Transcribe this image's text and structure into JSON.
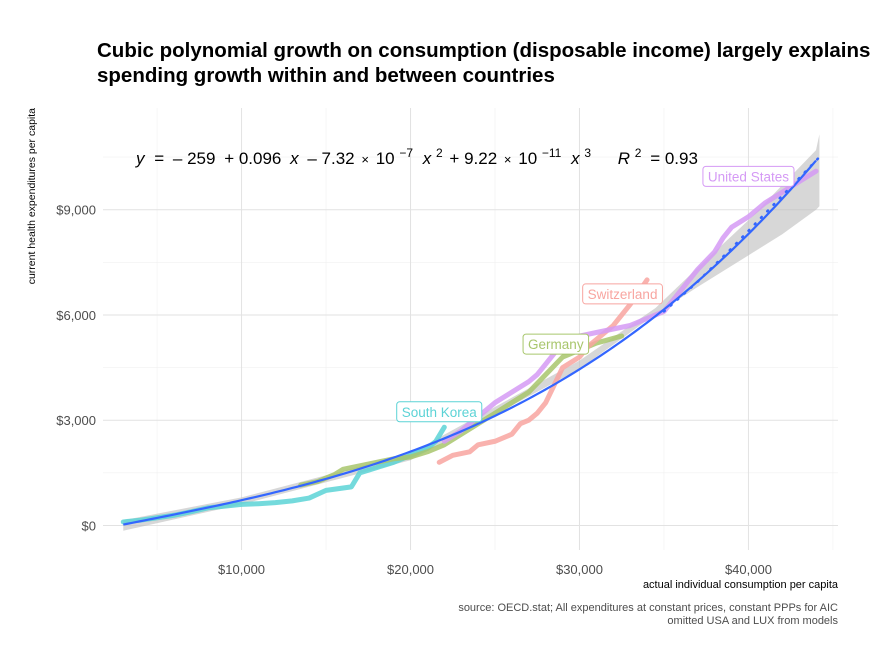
{
  "title": {
    "line1": "Cubic polynomial growth on consumption (disposable income) largely explains",
    "line2": "spending growth within and between countries"
  },
  "source": {
    "line1": "source: OECD.stat; All expenditures at constant prices, constant PPPs for AIC",
    "line2": "omitted USA and LUX from models"
  },
  "chart_data": {
    "type": "line",
    "xlabel": "actual individual consumption per capita",
    "ylabel": "current health expenditures per capita",
    "xlim": [
      1800,
      45300
    ],
    "ylim": [
      -700,
      11900
    ],
    "x_ticks": [
      10000,
      20000,
      30000,
      40000
    ],
    "x_tick_labels": [
      "$10,000",
      "$20,000",
      "$30,000",
      "$40,000"
    ],
    "y_ticks": [
      0,
      3000,
      6000,
      9000
    ],
    "y_tick_labels": [
      "$0",
      "$3,000",
      "$6,000",
      "$9,000"
    ],
    "equation": {
      "y": "y",
      "eq": "=",
      "c0": "– 259",
      "c1": "+ 0.096",
      "x": "x",
      "c2": "– 7.32",
      "times": "×",
      "ten": "10",
      "exp2": "−7",
      "p2": "2",
      "c3": "+ 9.22",
      "exp3": "−11",
      "p3": "3",
      "r": "R",
      "rp": "2",
      "rval": "= 0.93"
    },
    "fit": {
      "name": "cubic fit",
      "color": "#3366ff",
      "coefficients": [
        -259,
        0.096,
        -7.32e-07,
        9.22e-11
      ],
      "x_range": [
        3000,
        44000
      ]
    },
    "extrapolation": {
      "name": "US extrapolation",
      "x": [
        35000,
        37000,
        39000,
        41000,
        43000,
        44200
      ],
      "y": [
        6100,
        6950,
        7900,
        8900,
        9900,
        10500
      ]
    },
    "confidence_band": {
      "x": [
        3000,
        10000,
        20000,
        30000,
        34500,
        37000,
        40000,
        42000,
        44000,
        44200
      ],
      "lower": [
        -150,
        600,
        1860,
        4460,
        6020,
        6800,
        7700,
        8300,
        9000,
        9100
      ],
      "upper": [
        150,
        800,
        2060,
        4700,
        6200,
        7350,
        8700,
        9700,
        10700,
        11150
      ]
    },
    "series": [
      {
        "name": "South Korea",
        "color": "#5cd3d6",
        "x": [
          3000,
          4000,
          5000,
          6000,
          7000,
          8000,
          9000,
          10000,
          11000,
          12000,
          13000,
          14000,
          15000,
          16500,
          17000,
          18000,
          19000,
          20000,
          21000,
          21500,
          22000
        ],
        "y": [
          100,
          150,
          220,
          290,
          390,
          500,
          550,
          600,
          620,
          650,
          700,
          780,
          1000,
          1100,
          1500,
          1650,
          1800,
          2000,
          2200,
          2400,
          2800
        ]
      },
      {
        "name": "Germany",
        "color": "#a8c66c",
        "x": [
          13500,
          14500,
          15500,
          16000,
          17000,
          18000,
          19000,
          20000,
          21000,
          22000,
          23000,
          24000,
          25000,
          26000,
          27000,
          28000,
          29000,
          30000,
          31000,
          32500
        ],
        "y": [
          1150,
          1250,
          1450,
          1600,
          1700,
          1800,
          1900,
          1950,
          2100,
          2300,
          2600,
          2900,
          3200,
          3500,
          3800,
          4300,
          4800,
          5000,
          5200,
          5400
        ]
      },
      {
        "name": "Switzerland",
        "color": "#f8a5a0",
        "x": [
          21700,
          22500,
          23500,
          24000,
          25000,
          26000,
          26500,
          27000,
          27500,
          28000,
          28500,
          29000,
          30000,
          30500,
          31000,
          32000,
          33000,
          34000
        ],
        "y": [
          1800,
          2000,
          2100,
          2300,
          2400,
          2600,
          2900,
          3000,
          3200,
          3500,
          4000,
          4500,
          4800,
          5100,
          5300,
          5700,
          6300,
          7000
        ]
      },
      {
        "name": "United States",
        "color": "#d59af5",
        "x": [
          22000,
          23000,
          24000,
          25000,
          26000,
          27000,
          27500,
          28000,
          28500,
          29000,
          30000,
          31000,
          32000,
          33000,
          34000,
          35000,
          36000,
          37000,
          38000,
          38500,
          39000,
          40000,
          41000,
          42000,
          43000,
          44000
        ],
        "y": [
          2400,
          2700,
          3100,
          3500,
          3800,
          4100,
          4300,
          4600,
          4900,
          5200,
          5400,
          5500,
          5600,
          5700,
          5900,
          6100,
          6700,
          7300,
          7800,
          8200,
          8500,
          8800,
          9200,
          9500,
          9800,
          10100
        ]
      }
    ],
    "labels": [
      {
        "text": "South Korea",
        "color": "#5cd3d6",
        "x": 21700,
        "y": 3240
      },
      {
        "text": "Germany",
        "color": "#a8c66c",
        "x": 28600,
        "y": 5170
      },
      {
        "text": "Switzerland",
        "color": "#f8a5a0",
        "x": 32550,
        "y": 6600
      },
      {
        "text": "United States",
        "color": "#d59af5",
        "x": 40000,
        "y": 9950
      }
    ]
  }
}
